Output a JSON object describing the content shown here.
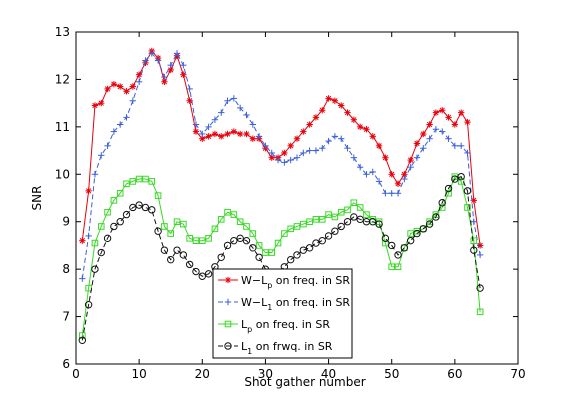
{
  "chart_data": {
    "type": "line",
    "xlabel": "Shot gather number",
    "ylabel": "SNR",
    "xlim": [
      0,
      70
    ],
    "ylim": [
      6,
      13
    ],
    "xticks": [
      0,
      10,
      20,
      30,
      40,
      50,
      60,
      70
    ],
    "yticks": [
      6,
      7,
      8,
      9,
      10,
      11,
      12,
      13
    ],
    "grid": false,
    "legend": {
      "position": "bottom-center",
      "entries": [
        {
          "main": "W−L",
          "sub": "p",
          "rest": " on freq. in SR"
        },
        {
          "main": "W−L",
          "sub": "1",
          "rest": " on freq. in SR"
        },
        {
          "main": "L",
          "sub": "p",
          "rest": " on freq. in SR"
        },
        {
          "main": "L",
          "sub": "1",
          "rest": " on frwq. in SR"
        }
      ]
    },
    "x": [
      1,
      2,
      3,
      4,
      5,
      6,
      7,
      8,
      9,
      10,
      11,
      12,
      13,
      14,
      15,
      16,
      17,
      18,
      19,
      20,
      21,
      22,
      23,
      24,
      25,
      26,
      27,
      28,
      29,
      30,
      31,
      32,
      33,
      34,
      35,
      36,
      37,
      38,
      39,
      40,
      41,
      42,
      43,
      44,
      45,
      46,
      47,
      48,
      49,
      50,
      51,
      52,
      53,
      54,
      55,
      56,
      57,
      58,
      59,
      60,
      61,
      62,
      63,
      64
    ],
    "series": [
      {
        "color": "#e8000b",
        "marker": "asterisk",
        "linestyle": "solid",
        "values": [
          8.6,
          9.65,
          11.45,
          11.5,
          11.8,
          11.9,
          11.85,
          11.75,
          11.85,
          12.1,
          12.35,
          12.6,
          12.45,
          11.95,
          12.2,
          12.5,
          12.1,
          11.55,
          10.9,
          10.75,
          10.8,
          10.85,
          10.8,
          10.85,
          10.9,
          10.85,
          10.85,
          10.75,
          10.75,
          10.55,
          10.35,
          10.35,
          10.45,
          10.6,
          10.75,
          10.9,
          11.05,
          11.2,
          11.35,
          11.6,
          11.55,
          11.45,
          11.3,
          11.15,
          11.0,
          10.95,
          10.8,
          10.6,
          10.35,
          10.0,
          9.8,
          10.0,
          10.3,
          10.65,
          10.85,
          11.05,
          11.3,
          11.35,
          11.2,
          11.05,
          11.3,
          11.1,
          9.45,
          8.5
        ]
      },
      {
        "color": "#3a5fd9",
        "marker": "plus",
        "linestyle": "dashed",
        "values": [
          7.8,
          8.7,
          10.0,
          10.4,
          10.6,
          10.9,
          11.05,
          11.2,
          11.55,
          11.95,
          12.4,
          12.55,
          12.4,
          12.05,
          12.3,
          12.55,
          12.3,
          11.8,
          11.05,
          10.85,
          11.0,
          11.15,
          11.3,
          11.55,
          11.6,
          11.4,
          11.25,
          11.05,
          10.8,
          10.6,
          10.45,
          10.3,
          10.25,
          10.3,
          10.35,
          10.45,
          10.5,
          10.5,
          10.55,
          10.7,
          10.8,
          10.75,
          10.55,
          10.35,
          10.15,
          10.0,
          10.05,
          9.85,
          9.6,
          9.6,
          9.6,
          9.9,
          10.15,
          10.35,
          10.55,
          10.75,
          10.95,
          10.9,
          10.75,
          10.6,
          10.6,
          10.45,
          9.0,
          8.3
        ]
      },
      {
        "color": "#39d926",
        "marker": "square",
        "linestyle": "solid",
        "values": [
          6.6,
          7.6,
          8.55,
          8.9,
          9.2,
          9.45,
          9.6,
          9.8,
          9.85,
          9.9,
          9.9,
          9.85,
          9.55,
          8.9,
          8.75,
          9.0,
          8.95,
          8.65,
          8.6,
          8.6,
          8.65,
          8.85,
          9.05,
          9.2,
          9.15,
          9.0,
          8.9,
          8.75,
          8.5,
          8.35,
          8.35,
          8.55,
          8.75,
          8.85,
          8.9,
          8.95,
          9.0,
          9.05,
          9.05,
          9.15,
          9.1,
          9.2,
          9.25,
          9.4,
          9.3,
          9.15,
          9.05,
          9.0,
          8.55,
          8.05,
          8.05,
          8.45,
          8.75,
          8.8,
          8.85,
          9.0,
          9.15,
          9.3,
          9.6,
          9.95,
          9.85,
          9.3,
          8.6,
          7.1
        ]
      },
      {
        "color": "#111111",
        "marker": "circle",
        "linestyle": "dashed",
        "values": [
          6.5,
          7.25,
          8.0,
          8.35,
          8.65,
          8.9,
          9.0,
          9.15,
          9.3,
          9.35,
          9.3,
          9.25,
          8.8,
          8.4,
          8.2,
          8.4,
          8.3,
          8.1,
          7.95,
          7.85,
          7.9,
          8.05,
          8.25,
          8.5,
          8.6,
          8.65,
          8.6,
          8.45,
          8.25,
          8.0,
          7.85,
          7.9,
          8.05,
          8.2,
          8.3,
          8.4,
          8.45,
          8.55,
          8.6,
          8.7,
          8.8,
          8.9,
          9.0,
          9.1,
          9.05,
          9.0,
          9.0,
          8.95,
          8.65,
          8.5,
          8.3,
          8.45,
          8.6,
          8.75,
          8.85,
          8.95,
          9.1,
          9.4,
          9.7,
          9.9,
          9.95,
          9.65,
          8.4,
          7.6
        ]
      }
    ]
  }
}
